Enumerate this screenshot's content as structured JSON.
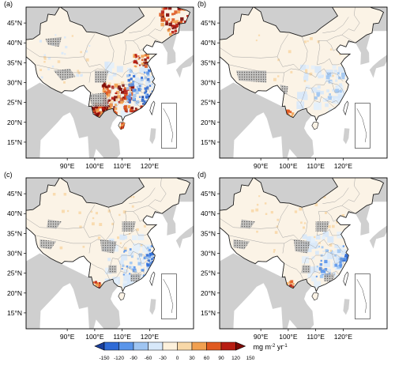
{
  "panels": [
    {
      "label": "(a)",
      "intensity": "strong"
    },
    {
      "label": "(b)",
      "intensity": "weak"
    },
    {
      "label": "(c)",
      "intensity": "medium"
    },
    {
      "label": "(d)",
      "intensity": "medium"
    }
  ],
  "lat_labels": [
    "45°N",
    "40°N",
    "35°N",
    "30°N",
    "25°N",
    "20°N",
    "15°N"
  ],
  "lon_labels": [
    "90°E",
    "100°E",
    "110°E",
    "120°E"
  ],
  "colorbar": {
    "ticks": [
      "-150",
      "-120",
      "-90",
      "-60",
      "-30",
      "0",
      "30",
      "60",
      "90",
      "120",
      "150"
    ],
    "colors": [
      "#1a3f9c",
      "#2f6bd6",
      "#5a95ea",
      "#9fc5f2",
      "#d7e8fa",
      "#fdf1dc",
      "#f8d8a8",
      "#f1a050",
      "#e05a20",
      "#b81d12",
      "#7d0a06"
    ],
    "unit_main": "mg m",
    "unit_sup1": "-2",
    "unit_mid": " yr",
    "unit_sup2": "-1"
  },
  "style": {
    "land": "#cfcfcf",
    "ocean": "#ffffff",
    "china_base": "#fbf3e6"
  }
}
